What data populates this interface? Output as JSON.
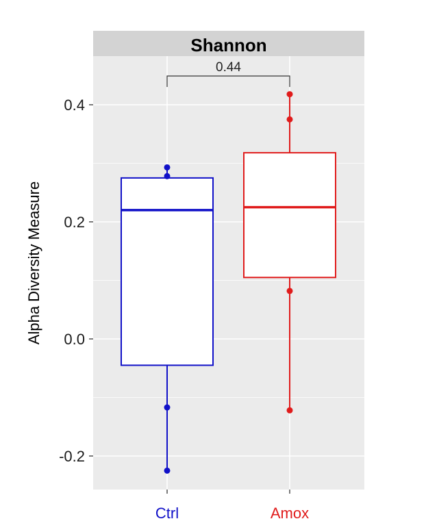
{
  "chart_data": {
    "type": "box",
    "facet_title": "Shannon",
    "ylabel": "Alpha Diversity Measure",
    "xlabel": "",
    "ylim": [
      -0.26,
      0.48
    ],
    "yticks": [
      0.4,
      0.2,
      0.0,
      -0.2
    ],
    "ytick_labels": [
      "0.4",
      "0.2",
      "0.0",
      "-0.2"
    ],
    "categories": [
      "Ctrl",
      "Amox"
    ],
    "groups": [
      {
        "label": "Ctrl",
        "color": "#1010c8",
        "q1": -0.045,
        "median": 0.22,
        "q3": 0.275,
        "whisker_low": -0.225,
        "whisker_high": 0.293,
        "points": [
          0.293,
          0.278,
          -0.117,
          -0.225
        ]
      },
      {
        "label": "Amox",
        "color": "#e01b1b",
        "q1": 0.105,
        "median": 0.225,
        "q3": 0.318,
        "whisker_low": -0.122,
        "whisker_high": 0.418,
        "points": [
          0.418,
          0.375,
          0.082,
          -0.122
        ]
      }
    ],
    "comparison": {
      "label": "0.44",
      "between": [
        "Ctrl",
        "Amox"
      ]
    },
    "grid": true,
    "panel_background": "#ebebeb",
    "strip_background": "#d3d3d3"
  }
}
